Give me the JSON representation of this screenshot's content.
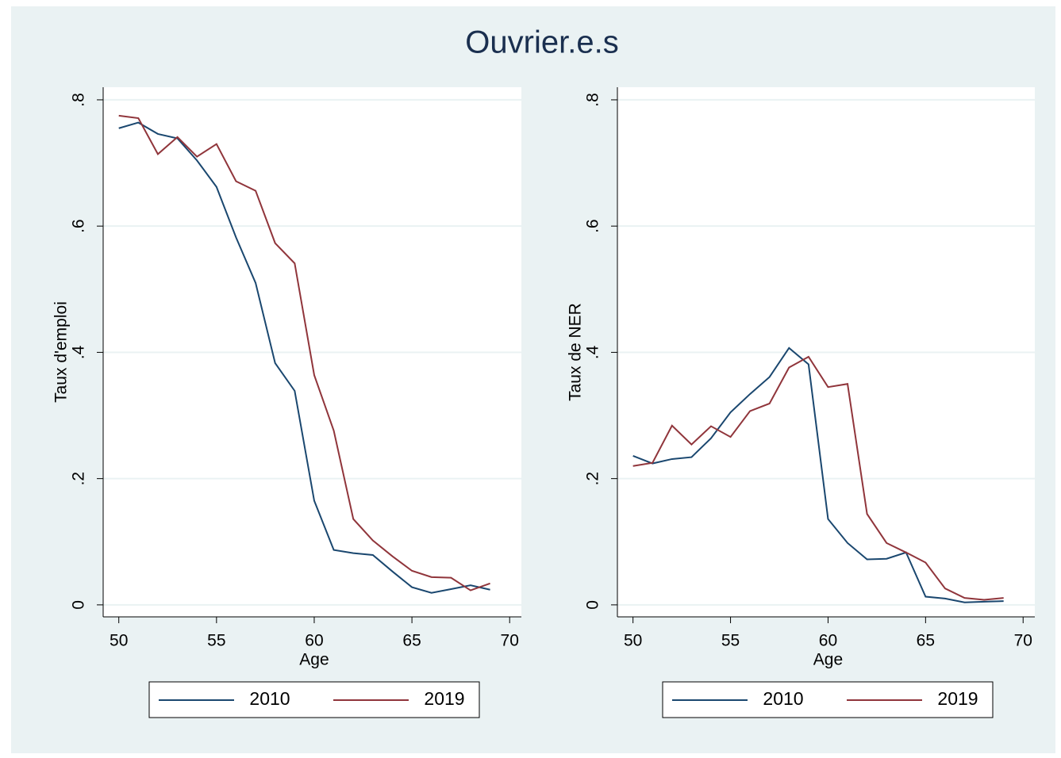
{
  "title": "Ouvrier.e.s",
  "chart_data": [
    {
      "type": "line",
      "y_label": "Taux d'emploi",
      "x_label": "Age",
      "x": [
        50,
        51,
        52,
        53,
        54,
        55,
        56,
        57,
        58,
        59,
        60,
        61,
        62,
        63,
        64,
        65,
        66,
        67,
        68,
        69
      ],
      "xlim": [
        49.2,
        70.6
      ],
      "xticks": [
        50,
        55,
        60,
        65,
        70
      ],
      "ylim": [
        -0.019,
        0.82
      ],
      "yticks": [
        0,
        {
          "value": 0.2,
          "label": ".2"
        },
        {
          "value": 0.4,
          "label": ".4"
        },
        {
          "value": 0.6,
          "label": ".6"
        },
        {
          "value": 0.8,
          "label": ".8"
        }
      ],
      "grid": true,
      "series": [
        {
          "name": "2010",
          "color": "#1a476f",
          "values": [
            0.755,
            0.764,
            0.746,
            0.739,
            0.704,
            0.662,
            0.582,
            0.51,
            0.383,
            0.339,
            0.165,
            0.087,
            0.082,
            0.079,
            0.053,
            0.028,
            0.019,
            0.025,
            0.031,
            0.024
          ]
        },
        {
          "name": "2019",
          "color": "#90353b",
          "values": [
            0.775,
            0.771,
            0.714,
            0.741,
            0.71,
            0.73,
            0.671,
            0.656,
            0.573,
            0.541,
            0.364,
            0.276,
            0.136,
            0.102,
            0.077,
            0.054,
            0.044,
            0.043,
            0.023,
            0.034
          ]
        }
      ]
    },
    {
      "type": "line",
      "y_label": "Taux de NER",
      "x_label": "Age",
      "x": [
        50,
        51,
        52,
        53,
        54,
        55,
        56,
        57,
        58,
        59,
        60,
        61,
        62,
        63,
        64,
        65,
        66,
        67,
        68,
        69
      ],
      "xlim": [
        49.2,
        70.6
      ],
      "xticks": [
        50,
        55,
        60,
        65,
        70
      ],
      "ylim": [
        -0.019,
        0.82
      ],
      "yticks": [
        0,
        {
          "value": 0.2,
          "label": ".2"
        },
        {
          "value": 0.4,
          "label": ".4"
        },
        {
          "value": 0.6,
          "label": ".6"
        },
        {
          "value": 0.8,
          "label": ".8"
        }
      ],
      "grid": true,
      "series": [
        {
          "name": "2010",
          "color": "#1a476f",
          "values": [
            0.236,
            0.224,
            0.231,
            0.234,
            0.264,
            0.305,
            0.334,
            0.361,
            0.407,
            0.381,
            0.136,
            0.098,
            0.072,
            0.073,
            0.083,
            0.013,
            0.01,
            0.004,
            0.005,
            0.006
          ]
        },
        {
          "name": "2019",
          "color": "#90353b",
          "values": [
            0.22,
            0.225,
            0.284,
            0.254,
            0.283,
            0.266,
            0.307,
            0.319,
            0.376,
            0.393,
            0.345,
            0.35,
            0.144,
            0.098,
            0.083,
            0.067,
            0.026,
            0.011,
            0.008,
            0.011
          ]
        }
      ]
    }
  ]
}
